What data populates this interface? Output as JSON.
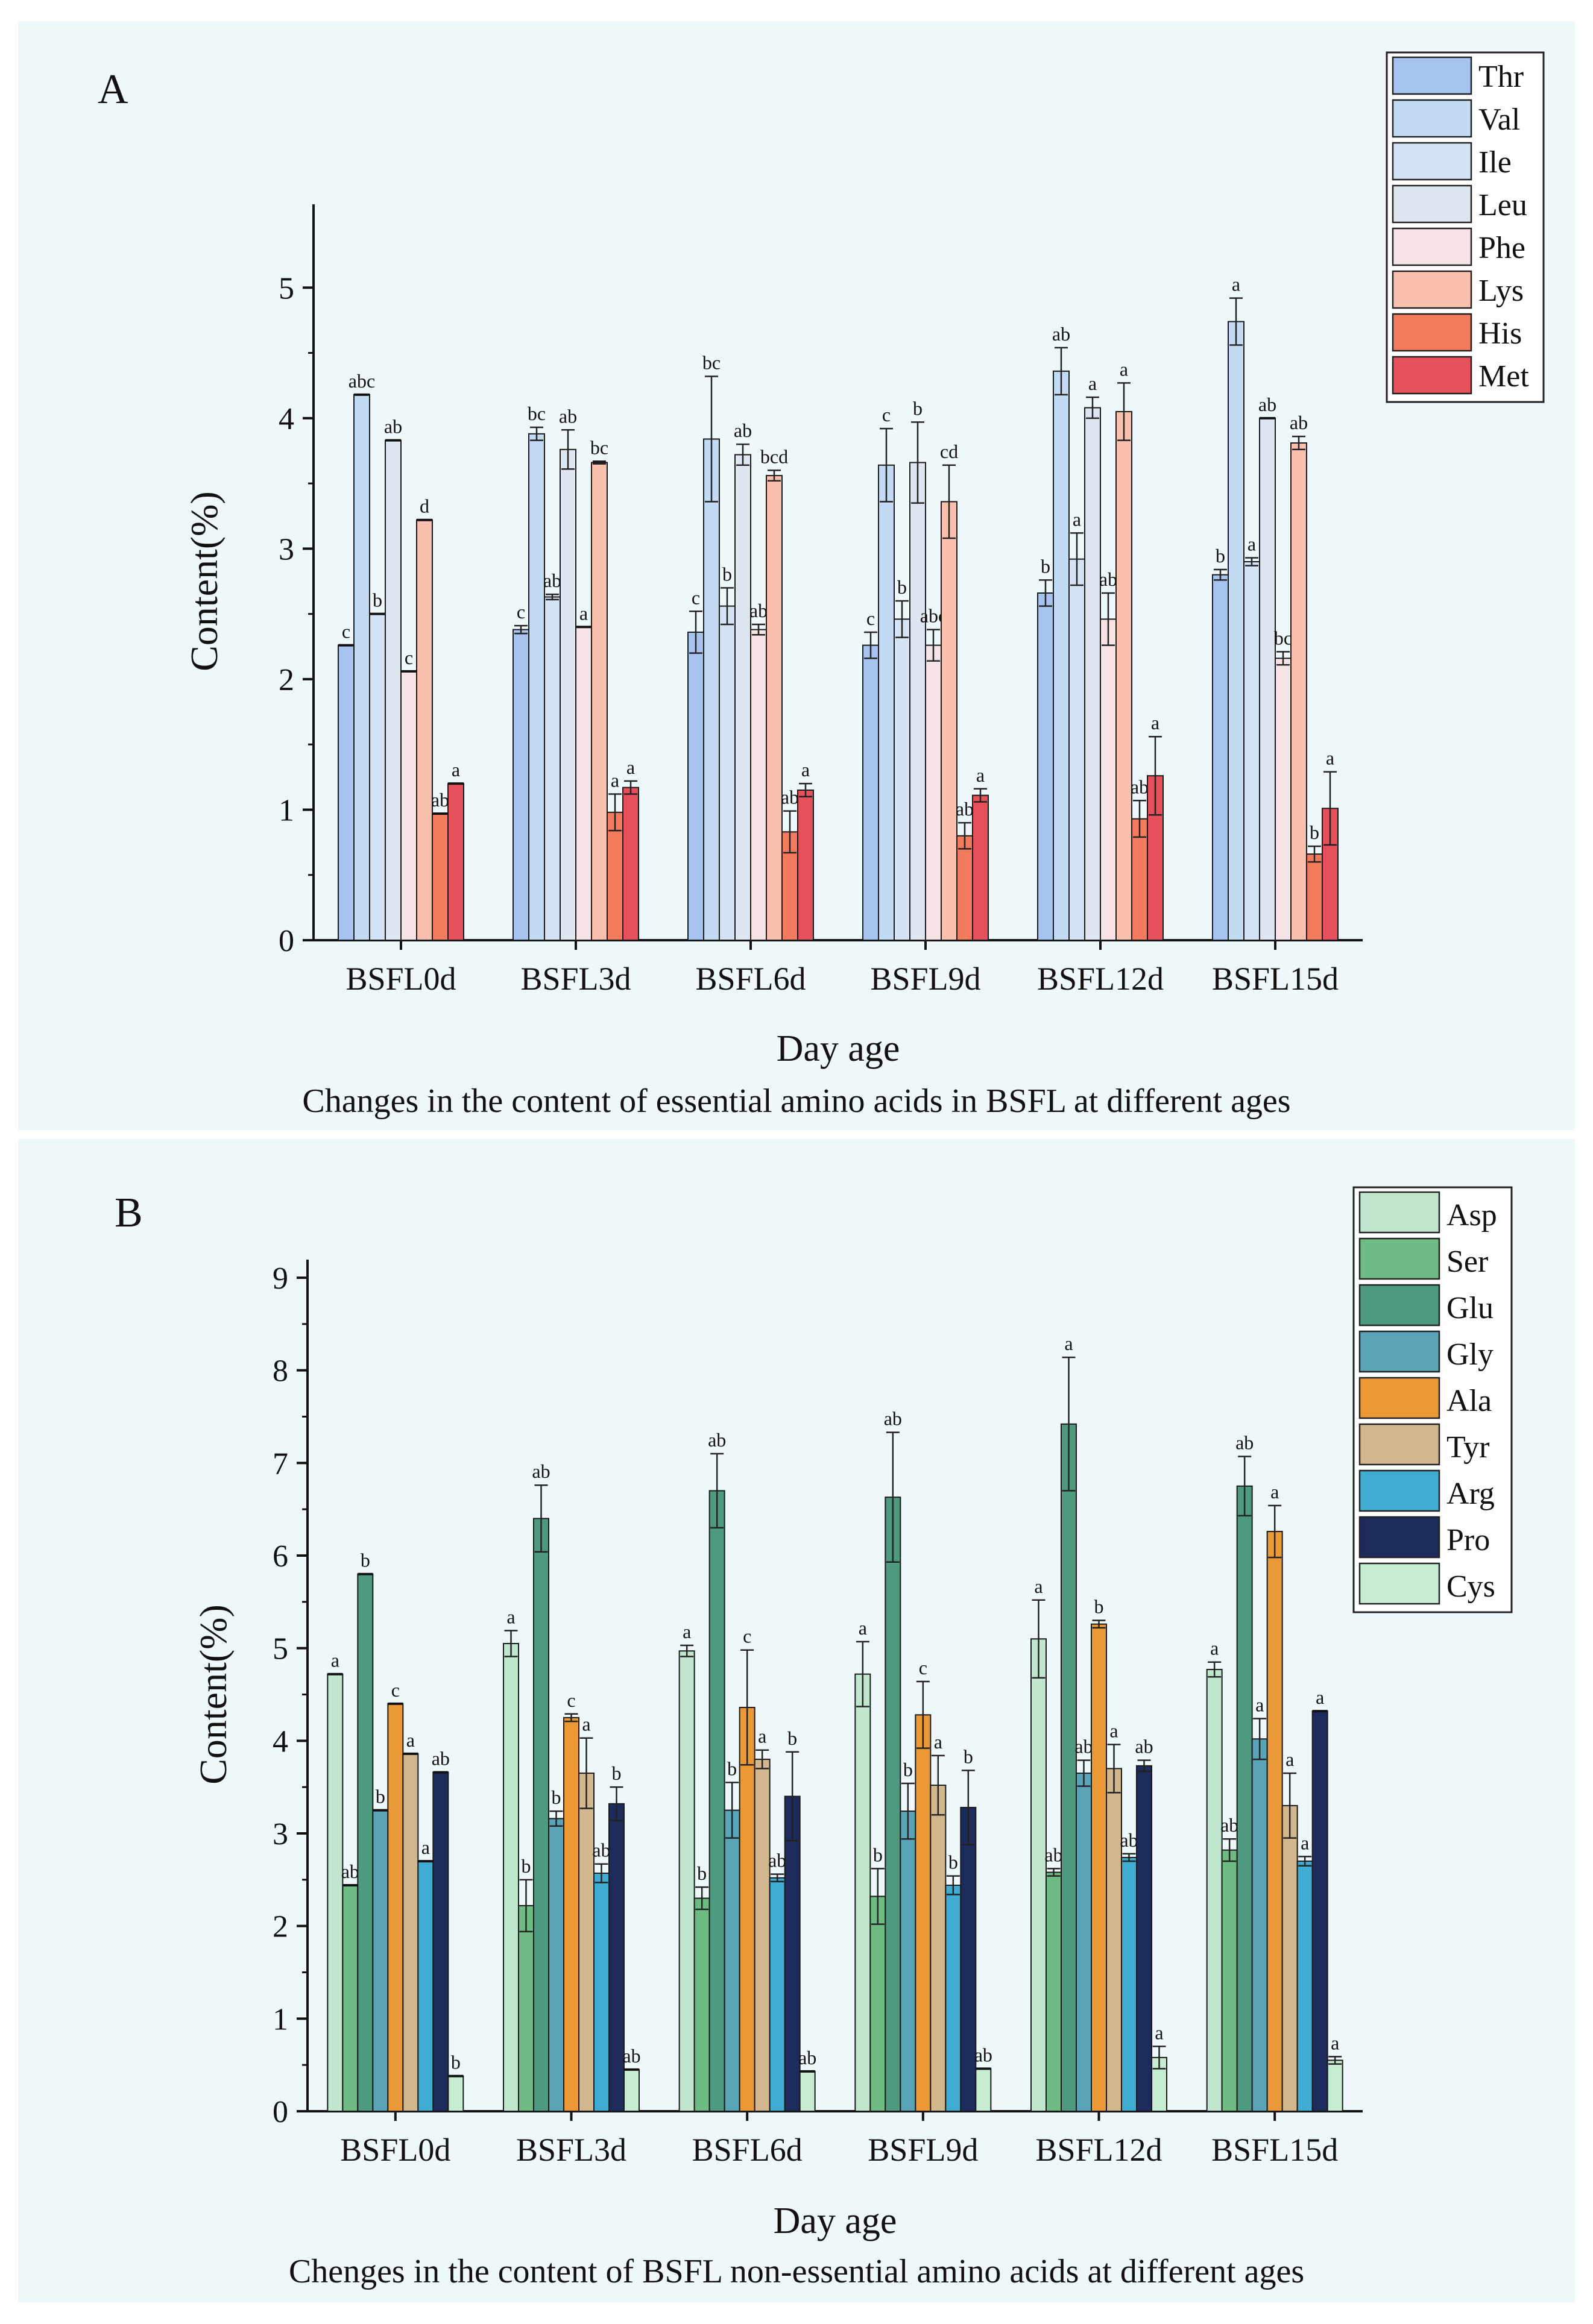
{
  "chart_data": [
    {
      "type": "bar",
      "panel_label": "A",
      "caption": "Changes in the content of essential amino acids in BSFL at different ages",
      "xlabel": "Day age",
      "ylabel": "Content(%)",
      "ylim": [
        0,
        5.5
      ],
      "yticks": [
        "0",
        "1",
        "2",
        "3",
        "4",
        "5"
      ],
      "categories": [
        "BSFL0d",
        "BSFL3d",
        "BSFL6d",
        "BSFL9d",
        "BSFL12d",
        "BSFL15d"
      ],
      "series": [
        {
          "name": "Thr",
          "color": "#a7c3ef",
          "values": [
            2.26,
            2.38,
            2.36,
            2.26,
            2.66,
            2.8
          ],
          "errors": [
            0.0,
            0.03,
            0.16,
            0.1,
            0.1,
            0.04
          ],
          "letters": [
            "c",
            "c",
            "c",
            "c",
            "b",
            "b"
          ]
        },
        {
          "name": "Val",
          "color": "#c3daf5",
          "values": [
            4.18,
            3.88,
            3.84,
            3.64,
            4.36,
            4.74
          ],
          "errors": [
            0.0,
            0.05,
            0.48,
            0.28,
            0.18,
            0.18
          ],
          "letters": [
            "abc",
            "bc",
            "bc",
            "c",
            "ab",
            "a"
          ]
        },
        {
          "name": "Ile",
          "color": "#d4e3f6",
          "values": [
            2.5,
            2.63,
            2.56,
            2.46,
            2.92,
            2.9
          ],
          "errors": [
            0.0,
            0.02,
            0.14,
            0.14,
            0.2,
            0.03
          ],
          "letters": [
            "b",
            "ab",
            "b",
            "b",
            "a",
            "a"
          ]
        },
        {
          "name": "Leu",
          "color": "#dde6f1",
          "values": [
            3.83,
            3.76,
            3.72,
            3.66,
            4.08,
            4.0
          ],
          "errors": [
            0.0,
            0.15,
            0.08,
            0.31,
            0.08,
            0.0
          ],
          "letters": [
            "ab",
            "ab",
            "ab",
            "b",
            "a",
            "ab"
          ]
        },
        {
          "name": "Phe",
          "color": "#f5e3e6",
          "values": [
            2.06,
            2.4,
            2.38,
            2.26,
            2.46,
            2.16
          ],
          "errors": [
            0.0,
            0.0,
            0.04,
            0.12,
            0.2,
            0.05
          ],
          "letters": [
            "c",
            "a",
            "ab",
            "abc",
            "ab",
            "bc"
          ]
        },
        {
          "name": "Lys",
          "color": "#f9c0ad",
          "values": [
            3.22,
            3.66,
            3.56,
            3.36,
            4.05,
            3.81
          ],
          "errors": [
            0.0,
            0.01,
            0.04,
            0.28,
            0.22,
            0.05
          ],
          "letters": [
            "d",
            "bc",
            "bcd",
            "cd",
            "a",
            "ab"
          ]
        },
        {
          "name": "His",
          "color": "#f27b5e",
          "values": [
            0.97,
            0.98,
            0.83,
            0.8,
            0.93,
            0.66
          ],
          "errors": [
            0.0,
            0.14,
            0.16,
            0.1,
            0.14,
            0.06
          ],
          "letters": [
            "ab",
            "a",
            "ab",
            "ab",
            "ab",
            "b"
          ]
        },
        {
          "name": "Met",
          "color": "#e5505b",
          "values": [
            1.2,
            1.17,
            1.15,
            1.11,
            1.26,
            1.01
          ],
          "errors": [
            0.0,
            0.05,
            0.05,
            0.05,
            0.3,
            0.28
          ],
          "letters": [
            "a",
            "a",
            "a",
            "a",
            "a",
            "a"
          ]
        }
      ]
    },
    {
      "type": "bar",
      "panel_label": "B",
      "caption": "Chenges in the content of BSFL non-essential amino acids at different ages",
      "xlabel": "Day age",
      "ylabel": "Content(%)",
      "ylim": [
        0,
        9
      ],
      "yticks": [
        "0",
        "1",
        "2",
        "3",
        "4",
        "5",
        "6",
        "7",
        "8",
        "9"
      ],
      "categories": [
        "BSFL0d",
        "BSFL3d",
        "BSFL6d",
        "BSFL9d",
        "BSFL12d",
        "BSFL15d"
      ],
      "series": [
        {
          "name": "Asp",
          "color": "#c0e6cd",
          "values": [
            4.72,
            5.05,
            4.97,
            4.72,
            5.1,
            4.77
          ],
          "errors": [
            0.0,
            0.14,
            0.06,
            0.35,
            0.42,
            0.08
          ],
          "letters": [
            "a",
            "a",
            "a",
            "a",
            "a",
            "a"
          ]
        },
        {
          "name": "Ser",
          "color": "#6ebc83",
          "values": [
            2.44,
            2.22,
            2.3,
            2.32,
            2.58,
            2.82
          ],
          "errors": [
            0.0,
            0.28,
            0.12,
            0.3,
            0.04,
            0.12
          ],
          "letters": [
            "ab",
            "b",
            "b",
            "b",
            "ab",
            "ab"
          ]
        },
        {
          "name": "Glu",
          "color": "#4e9a80",
          "values": [
            5.8,
            6.4,
            6.7,
            6.63,
            7.42,
            6.75
          ],
          "errors": [
            0.0,
            0.36,
            0.4,
            0.7,
            0.72,
            0.32
          ],
          "letters": [
            "b",
            "ab",
            "ab",
            "ab",
            "a",
            "ab"
          ]
        },
        {
          "name": "Gly",
          "color": "#5aa4b8",
          "values": [
            3.25,
            3.16,
            3.25,
            3.24,
            3.65,
            4.02
          ],
          "errors": [
            0.0,
            0.08,
            0.3,
            0.3,
            0.14,
            0.22
          ],
          "letters": [
            "b",
            "b",
            "b",
            "b",
            "ab",
            "a"
          ]
        },
        {
          "name": "Ala",
          "color": "#eb9937",
          "values": [
            4.4,
            4.25,
            4.36,
            4.28,
            5.26,
            6.26
          ],
          "errors": [
            0.0,
            0.04,
            0.62,
            0.36,
            0.04,
            0.28
          ],
          "letters": [
            "c",
            "c",
            "c",
            "c",
            "b",
            "a"
          ]
        },
        {
          "name": "Tyr",
          "color": "#d2b78e",
          "values": [
            3.86,
            3.65,
            3.8,
            3.52,
            3.7,
            3.3
          ],
          "errors": [
            0.0,
            0.38,
            0.1,
            0.32,
            0.26,
            0.35
          ],
          "letters": [
            "a",
            "a",
            "a",
            "a",
            "a",
            "a"
          ]
        },
        {
          "name": "Arg",
          "color": "#40acd2",
          "values": [
            2.7,
            2.57,
            2.52,
            2.44,
            2.74,
            2.7
          ],
          "errors": [
            0.0,
            0.1,
            0.04,
            0.1,
            0.04,
            0.05
          ],
          "letters": [
            "a",
            "ab",
            "ab",
            "b",
            "ab",
            "a"
          ]
        },
        {
          "name": "Pro",
          "color": "#1d2a5c",
          "values": [
            3.66,
            3.32,
            3.4,
            3.28,
            3.73,
            4.32
          ],
          "errors": [
            0.0,
            0.18,
            0.48,
            0.4,
            0.06,
            0.0
          ],
          "letters": [
            "ab",
            "b",
            "b",
            "b",
            "ab",
            "a"
          ]
        },
        {
          "name": "Cys",
          "color": "#c6ecd2",
          "values": [
            0.38,
            0.45,
            0.43,
            0.46,
            0.58,
            0.55
          ],
          "errors": [
            0.0,
            0.0,
            0.0,
            0.0,
            0.12,
            0.04
          ],
          "letters": [
            "b",
            "ab",
            "ab",
            "ab",
            "a",
            "a"
          ]
        }
      ]
    }
  ]
}
